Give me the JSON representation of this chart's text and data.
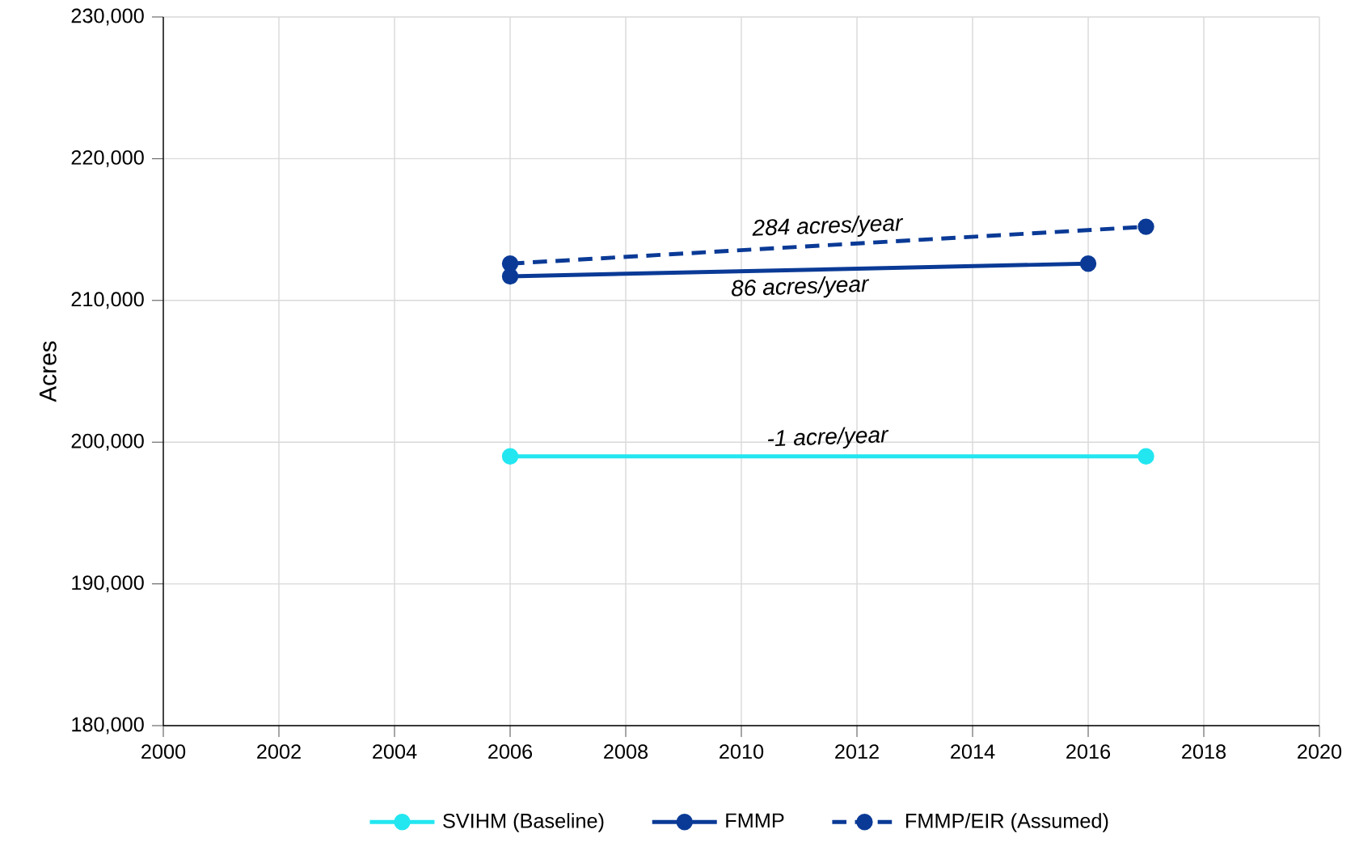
{
  "chart_data": {
    "type": "line",
    "ylabel": "Acres",
    "xlim": [
      2000,
      2020
    ],
    "xticks": [
      2000,
      2002,
      2004,
      2006,
      2008,
      2010,
      2012,
      2014,
      2016,
      2018,
      2020
    ],
    "ylim": [
      180000,
      230000
    ],
    "yticks": [
      {
        "value": 180000,
        "label": "180,000"
      },
      {
        "value": 190000,
        "label": "190,000"
      },
      {
        "value": 200000,
        "label": "200,000"
      },
      {
        "value": 210000,
        "label": "210,000"
      },
      {
        "value": 220000,
        "label": "220,000"
      },
      {
        "value": 230000,
        "label": "230,000"
      }
    ],
    "grid": true,
    "legend": "bottom",
    "marker": "circle",
    "series": [
      {
        "name": "SVIHM (Baseline)",
        "color": "#22e6f0",
        "x": [
          2006,
          2017
        ],
        "values": [
          199000,
          199000
        ]
      },
      {
        "name": "FMMP",
        "color": "#0a3a96",
        "x": [
          2006,
          2016
        ],
        "values": [
          211700,
          212600
        ]
      },
      {
        "name": "FMMP/EIR (Assumed)",
        "color": "#0a3a96",
        "x": [
          2006,
          2017
        ],
        "values": [
          212600,
          215200
        ],
        "line_style": "dashed"
      }
    ],
    "annotations": [
      "284 acres/year",
      "86 acres/year",
      "-1 acre/year"
    ]
  }
}
